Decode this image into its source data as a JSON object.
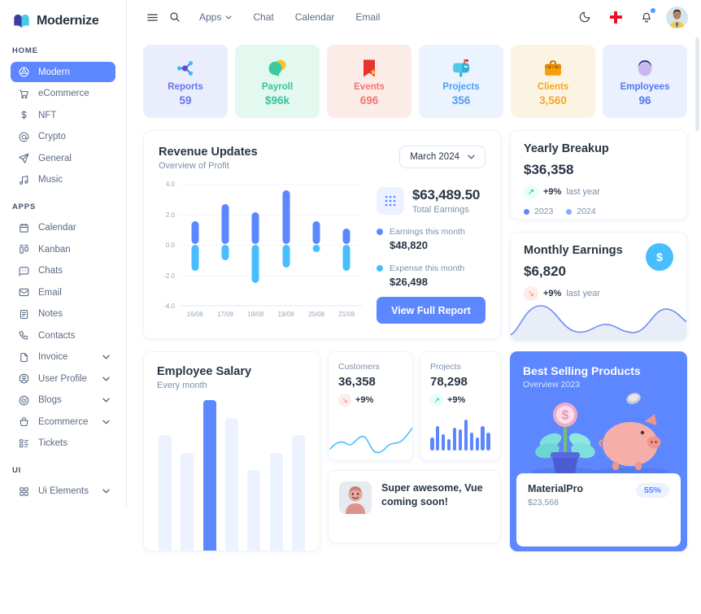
{
  "app": {
    "logo_text": "Modernize"
  },
  "header": {
    "nav_items": [
      {
        "label": "Apps",
        "has_chevron": true
      },
      {
        "label": "Chat",
        "has_chevron": false
      },
      {
        "label": "Calendar",
        "has_chevron": false
      },
      {
        "label": "Email",
        "has_chevron": false
      }
    ]
  },
  "sidebar": {
    "sections": [
      {
        "label": "HOME",
        "items": [
          {
            "label": "Modern",
            "icon": "aperture-icon",
            "active": true
          },
          {
            "label": "eCommerce",
            "icon": "cart-icon"
          },
          {
            "label": "NFT",
            "icon": "dollar-icon"
          },
          {
            "label": "Crypto",
            "icon": "at-icon"
          },
          {
            "label": "General",
            "icon": "send-icon"
          },
          {
            "label": "Music",
            "icon": "music-icon"
          }
        ]
      },
      {
        "label": "APPS",
        "items": [
          {
            "label": "Calendar",
            "icon": "calendar-icon"
          },
          {
            "label": "Kanban",
            "icon": "kanban-icon"
          },
          {
            "label": "Chats",
            "icon": "chat-icon"
          },
          {
            "label": "Email",
            "icon": "mail-icon"
          },
          {
            "label": "Notes",
            "icon": "notes-icon"
          },
          {
            "label": "Contacts",
            "icon": "phone-icon"
          },
          {
            "label": "Invoice",
            "icon": "file-icon",
            "has_chevron": true
          },
          {
            "label": "User Profile",
            "icon": "user-circle-icon",
            "has_chevron": true
          },
          {
            "label": "Blogs",
            "icon": "blog-icon",
            "has_chevron": true
          },
          {
            "label": "Ecommerce",
            "icon": "basket-icon",
            "has_chevron": true
          },
          {
            "label": "Tickets",
            "icon": "ticket-icon"
          }
        ]
      },
      {
        "label": "UI",
        "items": [
          {
            "label": "Ui Elements",
            "icon": "grid-icon",
            "has_chevron": true
          }
        ]
      }
    ]
  },
  "stat_cards": [
    {
      "label": "Reports",
      "value": "59",
      "icon": "share-network-icon",
      "bg": "#EAEDFC",
      "color": "#6577E8"
    },
    {
      "label": "Payroll",
      "value": "$96k",
      "icon": "coins-chat-icon",
      "bg": "#E3F8EF",
      "color": "#36C39F"
    },
    {
      "label": "Events",
      "value": "696",
      "icon": "bookmark-star-icon",
      "bg": "#FBECE8",
      "color": "#F2756C"
    },
    {
      "label": "Projects",
      "value": "356",
      "icon": "mailbox-icon",
      "bg": "#EAF3FE",
      "color": "#4E9CF5"
    },
    {
      "label": "Clients",
      "value": "3,560",
      "icon": "briefcase-icon",
      "bg": "#FCF4E2",
      "color": "#F5A623"
    },
    {
      "label": "Employees",
      "value": "96",
      "icon": "person-icon",
      "bg": "#EAF0FD",
      "color": "#5177F5"
    }
  ],
  "revenue": {
    "title": "Revenue Updates",
    "subtitle": "Overview of Profit",
    "period_select": "March 2024",
    "total": "$63,489.50",
    "total_label": "Total Earnings",
    "legend": [
      {
        "label": "Earnings this month",
        "value": "$48,820",
        "color": "#5D87FF"
      },
      {
        "label": "Expense this month",
        "value": "$26,498",
        "color": "#49BEFF"
      }
    ],
    "button_label": "View Full Report",
    "chart_data": {
      "type": "bar",
      "categories": [
        "16/08",
        "17/08",
        "18/08",
        "19/08",
        "20/08",
        "21/08"
      ],
      "series": [
        {
          "name": "Earnings this month",
          "values": [
            1.5,
            2.6,
            2.1,
            3.5,
            1.5,
            1.0
          ]
        },
        {
          "name": "Expense this month",
          "values": [
            -1.7,
            -1.0,
            -2.5,
            -1.5,
            -0.5,
            -1.7
          ]
        }
      ],
      "ylim": [
        -4,
        4
      ],
      "yticks": [
        4,
        2,
        0,
        -2,
        -4
      ]
    }
  },
  "yearly_breakup": {
    "title": "Yearly Breakup",
    "amount": "$36,358",
    "delta": "+9%",
    "delta_label": "last year",
    "legend": [
      {
        "label": "2023",
        "color": "#5D87FF"
      },
      {
        "label": "2024",
        "color": "#7EAEFF"
      }
    ]
  },
  "monthly_earnings": {
    "title": "Monthly Earnings",
    "amount": "$6,820",
    "delta": "+9%",
    "delta_label": "last year"
  },
  "employee_salary": {
    "title": "Employee Salary",
    "subtitle": "Every month",
    "chart_data": {
      "type": "bar",
      "values": [
        142,
        120,
        185,
        163,
        99,
        120,
        142
      ],
      "highlight_index": 2
    }
  },
  "customers": {
    "label": "Customers",
    "value": "36,358",
    "delta": "+9%"
  },
  "projects_mini": {
    "label": "Projects",
    "value": "78,298",
    "delta": "+9%",
    "chart_data": {
      "type": "bar",
      "values": [
        16,
        30,
        20,
        14,
        28,
        26,
        38,
        22,
        16,
        30,
        22
      ]
    }
  },
  "announcement": {
    "text": "Super awesome, Vue coming soon!"
  },
  "best_selling": {
    "title": "Best Selling Products",
    "subtitle": "Overview 2023",
    "product": "MaterialPro",
    "price": "$23,568",
    "badge": "55%"
  },
  "colors": {
    "primary": "#5D87FF",
    "secondary": "#49BEFF",
    "dark_text": "#2A3547",
    "gray_text": "#7C8FAC",
    "success": "#13DEB9",
    "error": "#FA896B",
    "warning": "#FFAE1F"
  }
}
